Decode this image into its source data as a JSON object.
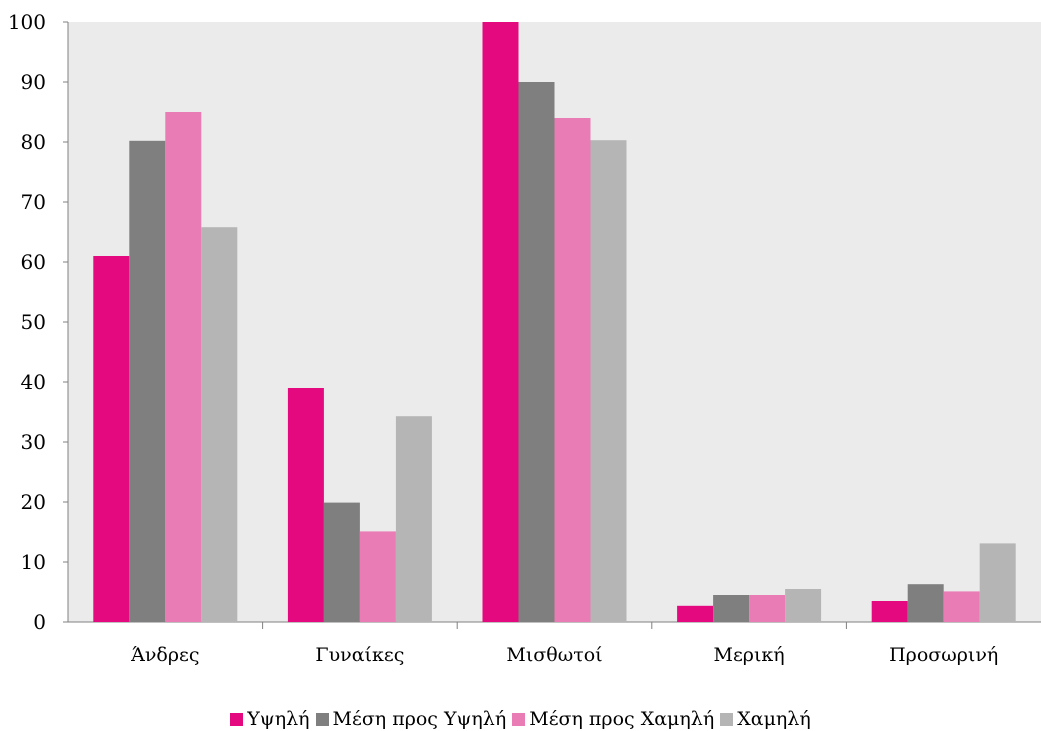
{
  "chart_data": {
    "type": "bar",
    "title": "",
    "xlabel": "",
    "ylabel": "",
    "categories": [
      "Άνδρες",
      "Γυναίκες",
      "Μισθωτοί",
      "Μερική",
      "Προσωρινή"
    ],
    "ylim": [
      0,
      100
    ],
    "yticks": [
      0,
      10,
      20,
      30,
      40,
      50,
      60,
      70,
      80,
      90,
      100
    ],
    "grid": false,
    "plot_background": "#ebebeb",
    "legend_position": "bottom",
    "series": [
      {
        "name": "Υψηλή",
        "color": "#e5097f",
        "values": [
          61,
          39,
          100,
          2.7,
          3.5
        ]
      },
      {
        "name": "Μέση προς Υψηλή",
        "color": "#7f7f7f",
        "values": [
          80.2,
          19.9,
          90,
          4.5,
          6.3
        ]
      },
      {
        "name": "Μέση προς Χαμηλή",
        "color": "#e97cb4",
        "values": [
          85,
          15.1,
          84,
          4.5,
          5.1
        ]
      },
      {
        "name": "Χαμηλή",
        "color": "#b5b5b5",
        "values": [
          65.8,
          34.3,
          80.3,
          5.5,
          13.1
        ]
      }
    ]
  }
}
